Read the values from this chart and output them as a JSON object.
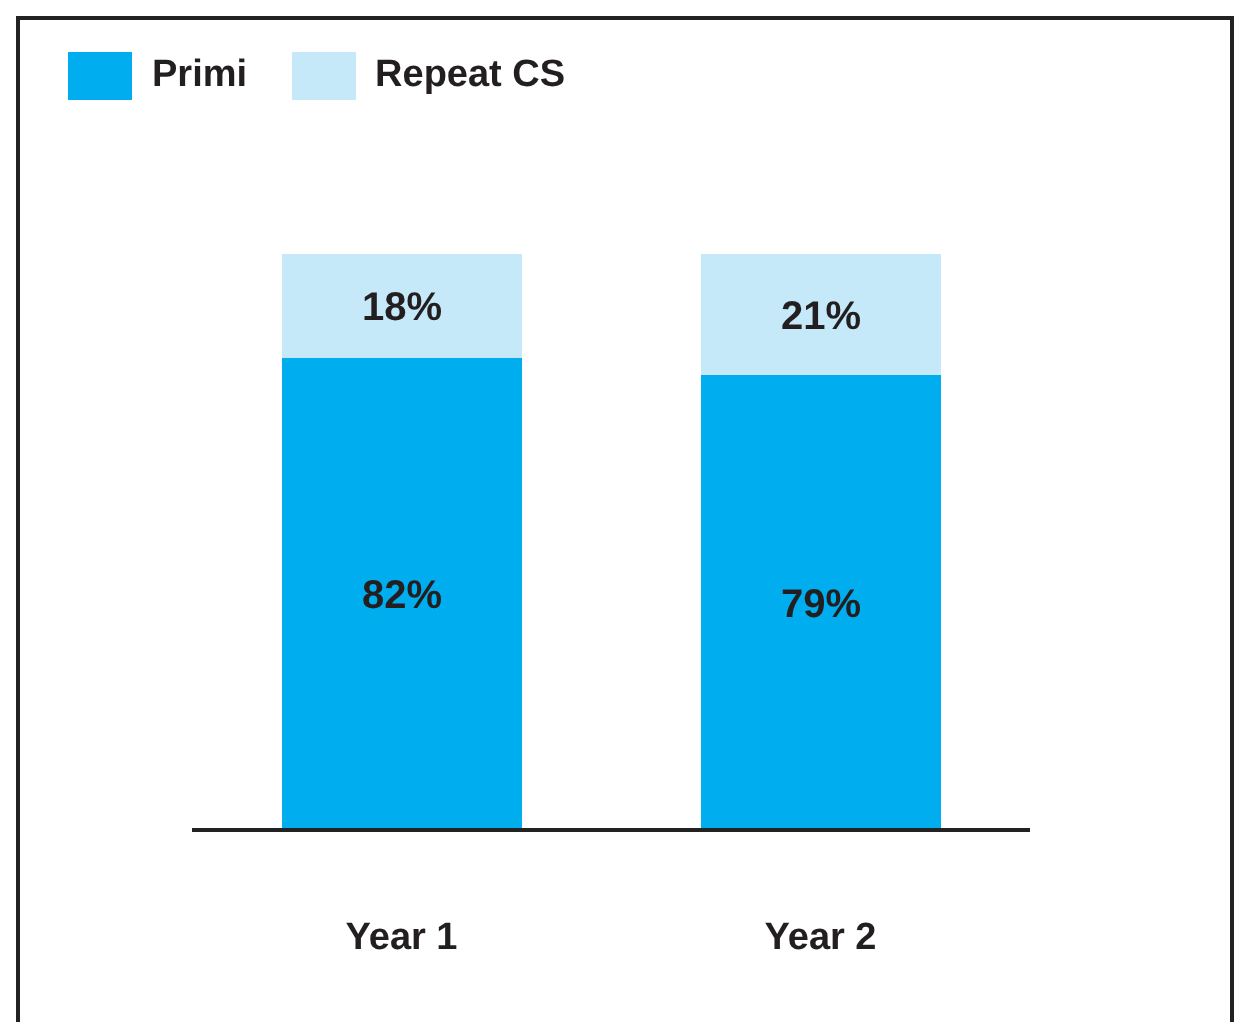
{
  "chart_data": {
    "type": "bar",
    "stacked": true,
    "categories": [
      "Year 1",
      "Year 2"
    ],
    "series": [
      {
        "name": "Primi",
        "color": "#00aeef",
        "values": [
          82,
          79
        ],
        "value_labels": [
          "82%",
          "79%"
        ]
      },
      {
        "name": "Repeat CS",
        "color": "#c5e9f9",
        "values": [
          18,
          21
        ],
        "value_labels": [
          "18%",
          "21%"
        ]
      }
    ],
    "legend": "top left",
    "tick_labels": "x",
    "grid": false
  }
}
